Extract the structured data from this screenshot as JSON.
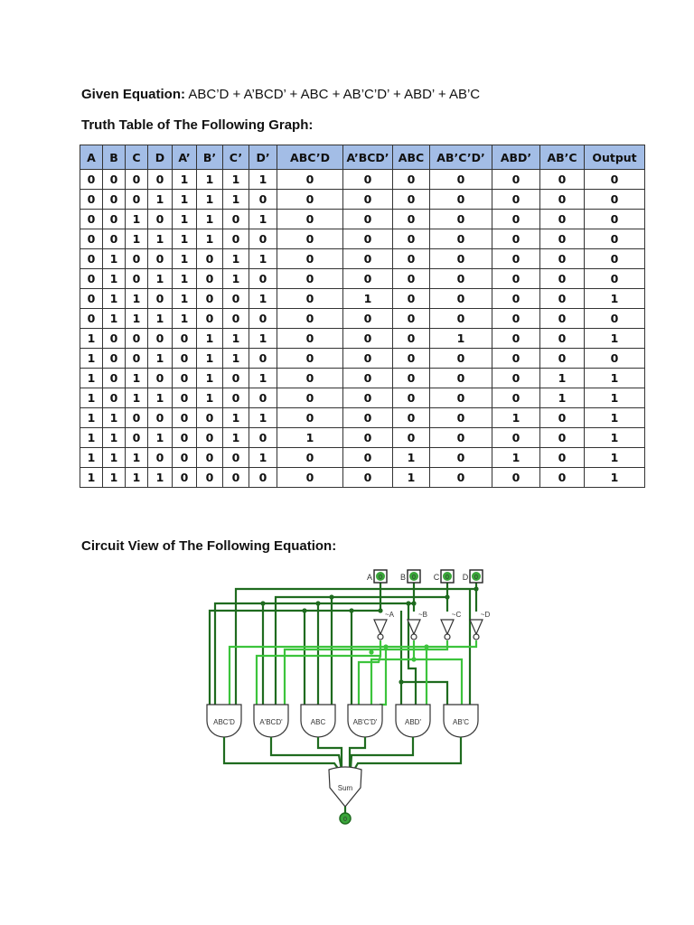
{
  "equation": {
    "label": "Given Equation:",
    "value": "ABC’D + A’BCD’ + ABC + AB’C’D’ + ABD’ + AB’C"
  },
  "table_title": "Truth Table of The Following Graph:",
  "table": {
    "headers": [
      "A",
      "B",
      "C",
      "D",
      "A’",
      "B’",
      "C’",
      "D’",
      "ABC’D",
      "A’BCD’",
      "ABC",
      "AB’C’D’",
      "ABD’",
      "AB’C",
      "Output"
    ],
    "header_color": "#a3bde6",
    "rows": [
      [
        "0",
        "0",
        "0",
        "0",
        "1",
        "1",
        "1",
        "1",
        "0",
        "0",
        "0",
        "0",
        "0",
        "0",
        "0"
      ],
      [
        "0",
        "0",
        "0",
        "1",
        "1",
        "1",
        "1",
        "0",
        "0",
        "0",
        "0",
        "0",
        "0",
        "0",
        "0"
      ],
      [
        "0",
        "0",
        "1",
        "0",
        "1",
        "1",
        "0",
        "1",
        "0",
        "0",
        "0",
        "0",
        "0",
        "0",
        "0"
      ],
      [
        "0",
        "0",
        "1",
        "1",
        "1",
        "1",
        "0",
        "0",
        "0",
        "0",
        "0",
        "0",
        "0",
        "0",
        "0"
      ],
      [
        "0",
        "1",
        "0",
        "0",
        "1",
        "0",
        "1",
        "1",
        "0",
        "0",
        "0",
        "0",
        "0",
        "0",
        "0"
      ],
      [
        "0",
        "1",
        "0",
        "1",
        "1",
        "0",
        "1",
        "0",
        "0",
        "0",
        "0",
        "0",
        "0",
        "0",
        "0"
      ],
      [
        "0",
        "1",
        "1",
        "0",
        "1",
        "0",
        "0",
        "1",
        "0",
        "1",
        "0",
        "0",
        "0",
        "0",
        "1"
      ],
      [
        "0",
        "1",
        "1",
        "1",
        "1",
        "0",
        "0",
        "0",
        "0",
        "0",
        "0",
        "0",
        "0",
        "0",
        "0"
      ],
      [
        "1",
        "0",
        "0",
        "0",
        "0",
        "1",
        "1",
        "1",
        "0",
        "0",
        "0",
        "1",
        "0",
        "0",
        "1"
      ],
      [
        "1",
        "0",
        "0",
        "1",
        "0",
        "1",
        "1",
        "0",
        "0",
        "0",
        "0",
        "0",
        "0",
        "0",
        "0"
      ],
      [
        "1",
        "0",
        "1",
        "0",
        "0",
        "1",
        "0",
        "1",
        "0",
        "0",
        "0",
        "0",
        "0",
        "1",
        "1"
      ],
      [
        "1",
        "0",
        "1",
        "1",
        "0",
        "1",
        "0",
        "0",
        "0",
        "0",
        "0",
        "0",
        "0",
        "1",
        "1"
      ],
      [
        "1",
        "1",
        "0",
        "0",
        "0",
        "0",
        "1",
        "1",
        "0",
        "0",
        "0",
        "0",
        "1",
        "0",
        "1"
      ],
      [
        "1",
        "1",
        "0",
        "1",
        "0",
        "0",
        "1",
        "0",
        "1",
        "0",
        "0",
        "0",
        "0",
        "0",
        "1"
      ],
      [
        "1",
        "1",
        "1",
        "0",
        "0",
        "0",
        "0",
        "1",
        "0",
        "0",
        "1",
        "0",
        "1",
        "0",
        "1"
      ],
      [
        "1",
        "1",
        "1",
        "1",
        "0",
        "0",
        "0",
        "0",
        "0",
        "0",
        "1",
        "0",
        "0",
        "0",
        "1"
      ]
    ]
  },
  "circuit_title": "Circuit View of The Following Equation:",
  "circuit": {
    "inputs": [
      "A",
      "B",
      "C",
      "D"
    ],
    "input_value": "0",
    "not_labels": [
      "~A",
      "~B",
      "~C",
      "~D"
    ],
    "gates": [
      "ABC'D",
      "A'BCD'",
      "ABC",
      "AB'C'D'",
      "ABD'",
      "AB'C"
    ],
    "or_gate": "Sum",
    "output_value": "0",
    "wire_dark": "#1f6b1f",
    "wire_light": "#3cc43c"
  }
}
